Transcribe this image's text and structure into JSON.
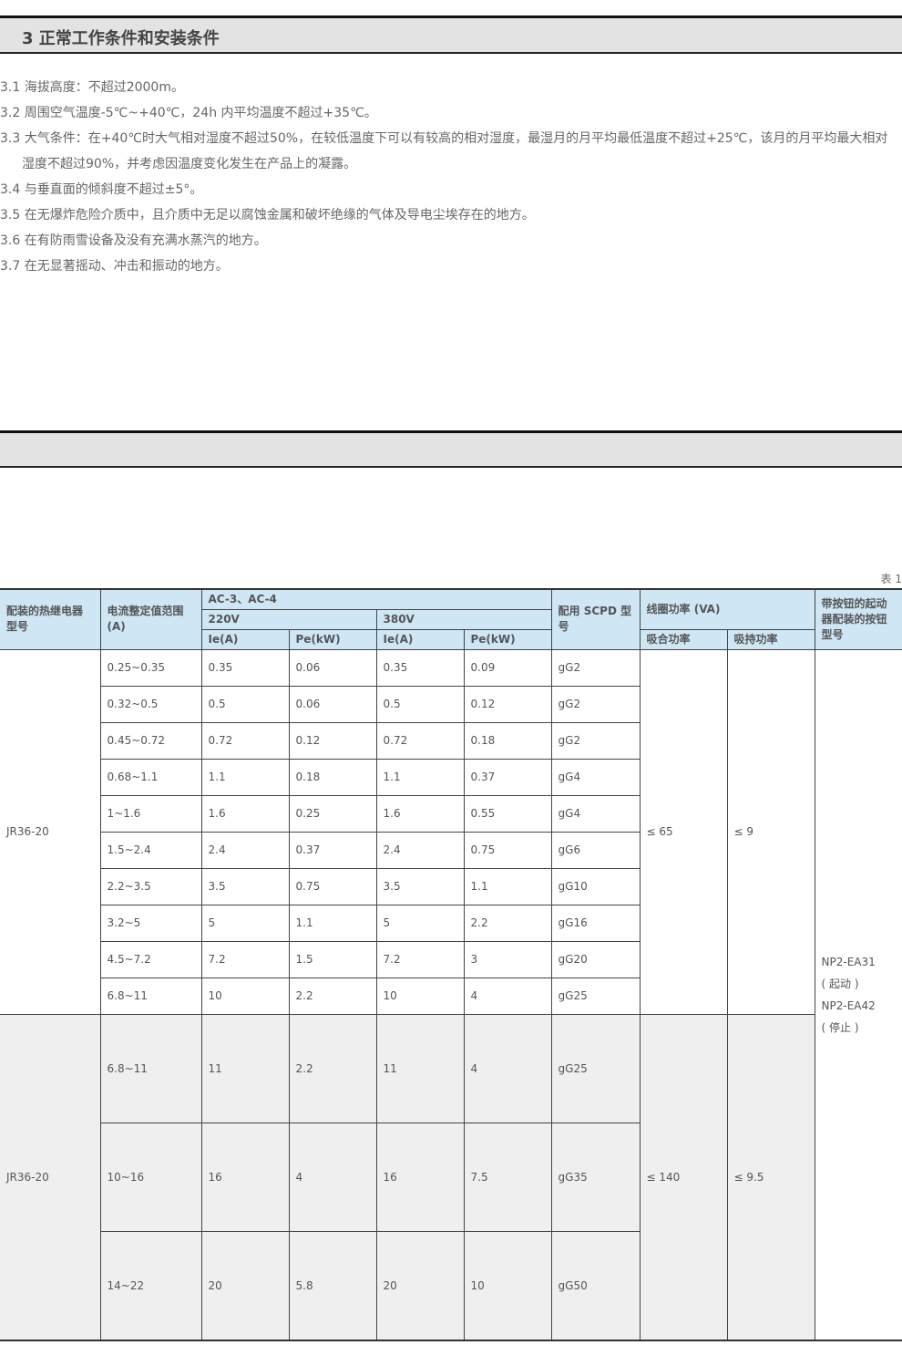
{
  "section3": {
    "title": "3 正常工作条件和安装条件",
    "clauses": [
      "3.1 海拔高度：不超过2000m。",
      "3.2 周围空气温度-5℃~+40℃，24h 内平均温度不超过+35℃。",
      "3.3 大气条件：在+40℃时大气相对湿度不超过50%，在较低温度下可以有较高的相对湿度，最湿月的月平均最低温度不超过+25℃，该月的月平均最大相对湿度不超过90%，并考虑因温度变化发生在产品上的凝露。",
      "3.4 与垂直面的倾斜度不超过±5°。",
      "3.5 在无爆炸危险介质中，且介质中无足以腐蚀金属和破坏绝缘的气体及导电尘埃存在的地方。",
      "3.6 在有防雨雪设备及没有充满水蒸汽的地方。",
      "3.7 在无显著摇动、冲击和振动的地方。"
    ]
  },
  "section_next": {
    "title": ""
  },
  "table": {
    "note": "表 1",
    "headers": {
      "relay_model": "配装的热继电器型号",
      "current_range": "电流整定值范围 (A)",
      "ac": "AC-3、AC-4",
      "v220": "220V",
      "v380": "380V",
      "ie": "Ie(A)",
      "pe": "Pe(kW)",
      "scpd": "配用 SCPD 型号",
      "coil": "线圈功率 (VA)",
      "pull_in": "吸合功率",
      "hold": "吸持功率",
      "button": "带按钮的起动器配装的按钮型号"
    },
    "groups": [
      {
        "model": "JR36-20",
        "pull_in": "≤ 65",
        "hold": "≤ 9",
        "rows": [
          [
            "0.25~0.35",
            "0.35",
            "0.06",
            "0.35",
            "0.09",
            "gG2"
          ],
          [
            "0.32~0.5",
            "0.5",
            "0.06",
            "0.5",
            "0.12",
            "gG2"
          ],
          [
            "0.45~0.72",
            "0.72",
            "0.12",
            "0.72",
            "0.18",
            "gG2"
          ],
          [
            "0.68~1.1",
            "1.1",
            "0.18",
            "1.1",
            "0.37",
            "gG4"
          ],
          [
            "1~1.6",
            "1.6",
            "0.25",
            "1.6",
            "0.55",
            "gG4"
          ],
          [
            "1.5~2.4",
            "2.4",
            "0.37",
            "2.4",
            "0.75",
            "gG6"
          ],
          [
            "2.2~3.5",
            "3.5",
            "0.75",
            "3.5",
            "1.1",
            "gG10"
          ],
          [
            "3.2~5",
            "5",
            "1.1",
            "5",
            "2.2",
            "gG16"
          ],
          [
            "4.5~7.2",
            "7.2",
            "1.5",
            "7.2",
            "3",
            "gG20"
          ],
          [
            "6.8~11",
            "10",
            "2.2",
            "10",
            "4",
            "gG25"
          ]
        ]
      },
      {
        "model": "JR36-20",
        "pull_in": "≤ 140",
        "hold": "≤ 9.5",
        "rows": [
          [
            "6.8~11",
            "11",
            "2.2",
            "11",
            "4",
            "gG25"
          ],
          [
            "10~16",
            "16",
            "4",
            "16",
            "7.5",
            "gG35"
          ],
          [
            "14~22",
            "20",
            "5.8",
            "20",
            "10",
            "gG50"
          ]
        ]
      }
    ],
    "buttons": [
      "NP2-EA31",
      "( 起动 )",
      "NP2-EA42",
      "( 停止 )"
    ]
  }
}
